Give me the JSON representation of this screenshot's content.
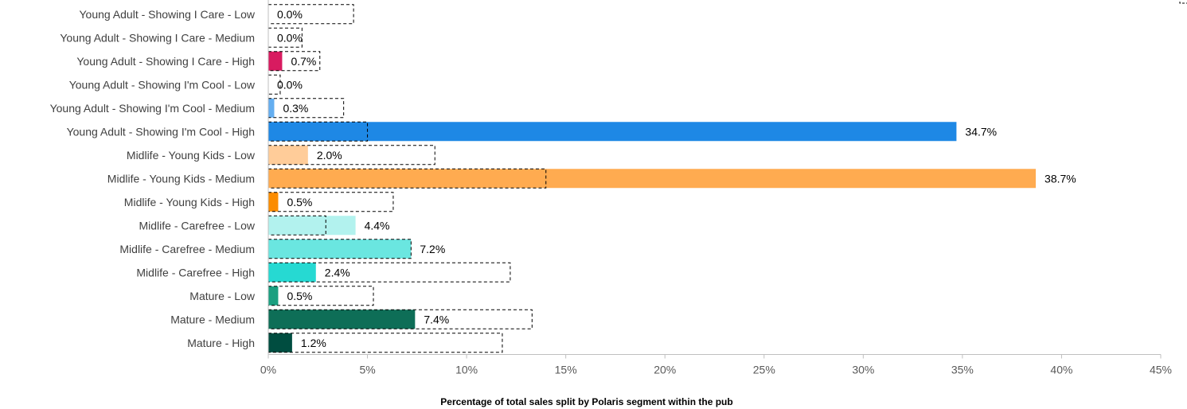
{
  "chart_data": {
    "type": "bar",
    "orientation": "horizontal",
    "xlabel": "Percentage of total sales split by Polaris segment within the pub",
    "xlim": [
      0,
      45
    ],
    "x_ticks": [
      "0%",
      "5%",
      "10%",
      "15%",
      "20%",
      "25%",
      "30%",
      "35%",
      "40%",
      "45%"
    ],
    "grid": false,
    "categories": [
      "Young Adult - Showing I Care - Low",
      "Young Adult - Showing I Care - Medium",
      "Young Adult - Showing I Care - High",
      "Young Adult - Showing I'm Cool - Low",
      "Young Adult - Showing I'm Cool - Medium",
      "Young Adult - Showing I'm Cool - High",
      "Midlife - Young Kids - Low",
      "Midlife - Young Kids - Medium",
      "Midlife - Young Kids - High",
      "Midlife - Carefree - Low",
      "Midlife - Carefree - Medium",
      "Midlife - Carefree - High",
      "Mature - Low",
      "Mature - Medium",
      "Mature - High"
    ],
    "series": [
      {
        "values": [
          0.0,
          0.0,
          0.7,
          0.0,
          0.3,
          34.7,
          2.0,
          38.7,
          0.5,
          4.4,
          7.2,
          2.4,
          0.5,
          7.4,
          1.2
        ],
        "labels": [
          "0.0%",
          "0.0%",
          "0.7%",
          "0.0%",
          "0.3%",
          "34.7%",
          "2.0%",
          "38.7%",
          "0.5%",
          "4.4%",
          "7.2%",
          "2.4%",
          "0.5%",
          "7.4%",
          "1.2%"
        ],
        "colors": [
          "#8b1a52",
          "#b0174f",
          "#d81b60",
          "#9cc8f5",
          "#64aef0",
          "#1e88e5",
          "#ffcc99",
          "#ffab50",
          "#fb8c00",
          "#b2f2ee",
          "#6ae6e0",
          "#26d9d2",
          "#1a9f80",
          "#0e6e57",
          "#004d40"
        ]
      },
      {
        "style": "dashed-outline",
        "values": [
          4.3,
          1.7,
          2.6,
          0.6,
          3.8,
          5.0,
          8.4,
          14.0,
          6.3,
          2.9,
          7.2,
          12.2,
          5.3,
          13.3,
          11.8
        ]
      }
    ],
    "legend_partial_visible": "top-right"
  }
}
